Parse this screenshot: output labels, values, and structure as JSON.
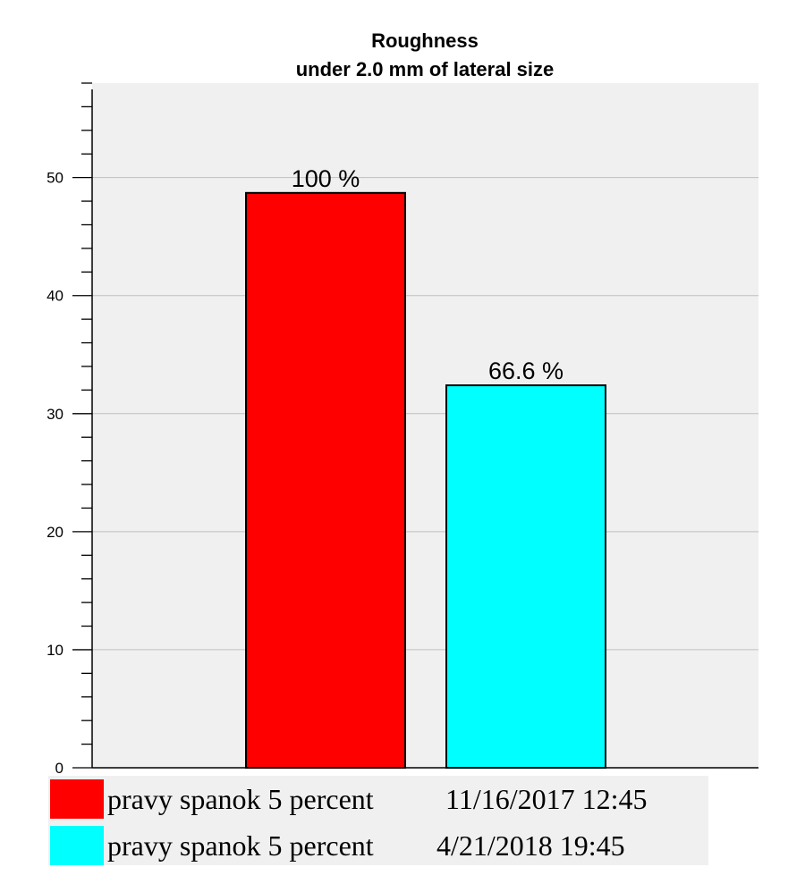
{
  "chart_data": {
    "type": "bar",
    "title": "Roughness",
    "subtitle": "under 2.0 mm of lateral size",
    "ylim": [
      0,
      58
    ],
    "yticks": [
      0,
      10,
      20,
      30,
      40,
      50
    ],
    "grid": true,
    "series": [
      {
        "name": "pravy spanok 5 percent",
        "date": "11/16/2017  12:45",
        "value": 48.7,
        "label": "100 %",
        "color": "#ff0000"
      },
      {
        "name": "pravy spanok 5 percent",
        "date": "4/21/2018  19:45",
        "value": 32.4,
        "label": "66.6 %",
        "color": "#00ffff"
      }
    ],
    "legend_position": "bottom"
  },
  "colors": {
    "plot_background": "#f0f0f0",
    "grid": "#c0c0c0"
  }
}
